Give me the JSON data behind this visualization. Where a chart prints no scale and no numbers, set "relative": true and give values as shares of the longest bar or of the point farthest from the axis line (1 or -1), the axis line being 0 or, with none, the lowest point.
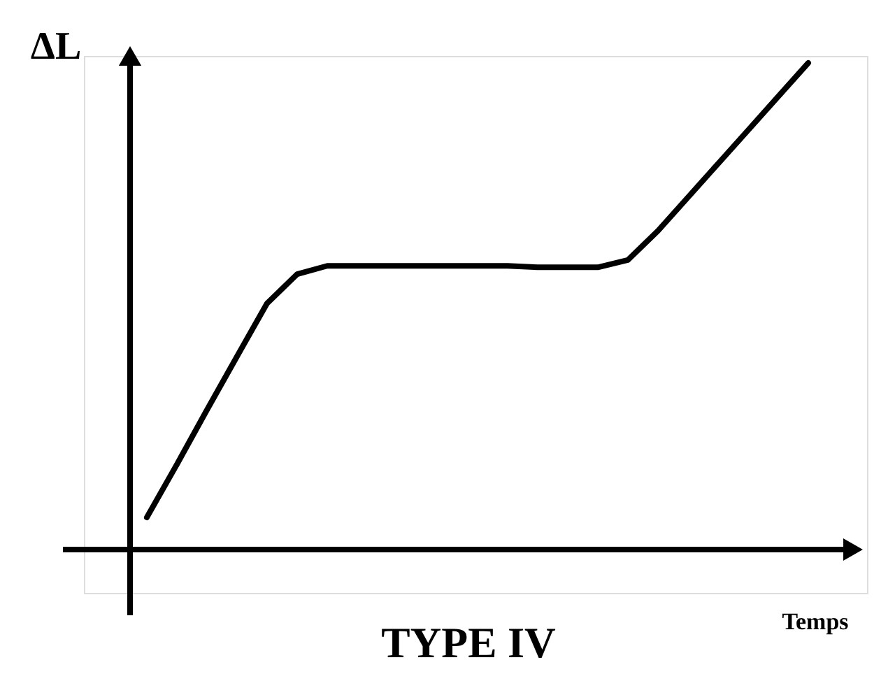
{
  "chart_data": {
    "type": "line",
    "relative": true,
    "title": "TYPE IV",
    "xlabel": "Temps",
    "ylabel": "ΔL",
    "tick_labels": false,
    "marker": "none",
    "line_style": "solid",
    "categories": [
      null,
      null,
      null,
      null,
      null,
      null,
      null,
      null,
      null,
      null,
      null,
      null,
      null,
      null,
      null,
      null,
      null,
      null,
      null,
      null,
      null,
      null,
      null
    ],
    "series": [
      {
        "color": "#000000",
        "values": [
          0.066,
          0.175,
          0.287,
          0.397,
          0.506,
          0.566,
          0.583,
          0.583,
          0.583,
          0.583,
          0.583,
          0.583,
          0.583,
          0.58,
          0.58,
          0.58,
          0.595,
          0.655,
          0.724,
          0.793,
          0.862,
          0.931,
          1.0
        ]
      }
    ]
  }
}
